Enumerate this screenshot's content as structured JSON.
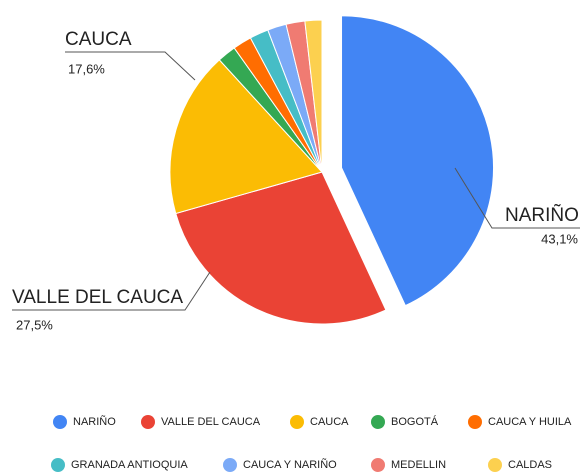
{
  "chart_data": {
    "type": "pie",
    "categories": [
      "NARIÑO",
      "VALLE DEL CAUCA",
      "CAUCA",
      "BOGOTÁ",
      "CAUCA Y HUILA",
      "GRANADA ANTIOQUIA",
      "CAUCA Y NARIÑO",
      "MEDELLIN",
      "CALDAS"
    ],
    "values": [
      43.1,
      27.5,
      17.6,
      2,
      2,
      2,
      2,
      2,
      1.8
    ],
    "value_labels": [
      "43,1%",
      "27,5%",
      "17,6%",
      null,
      null,
      null,
      null,
      null,
      null
    ],
    "colors": [
      "#4285f4",
      "#ea4335",
      "#fbbc04",
      "#34a853",
      "#ff6d01",
      "#46bdc6",
      "#7baaf7",
      "#f07b72",
      "#fcd04f"
    ],
    "exploded": [
      0
    ]
  }
}
